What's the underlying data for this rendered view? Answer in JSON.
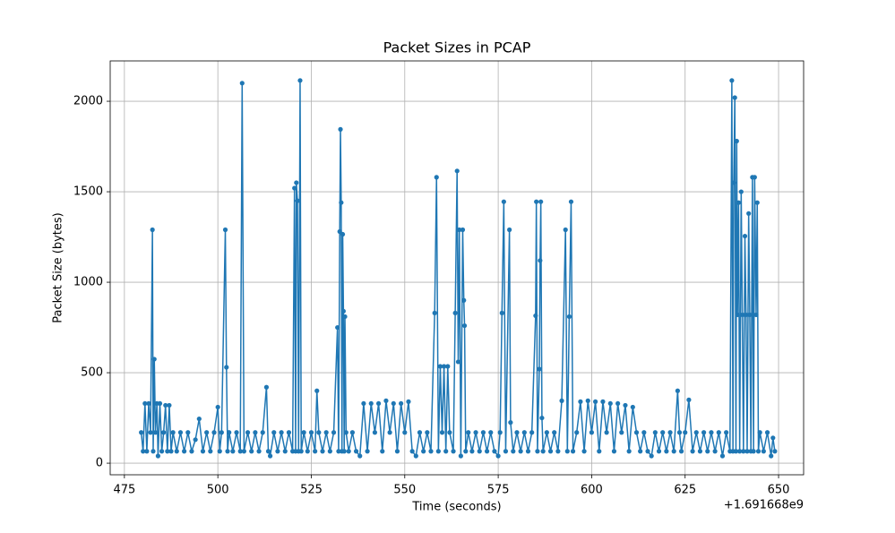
{
  "chart_data": {
    "type": "line",
    "title": "Packet Sizes in PCAP",
    "x_label": "Time (seconds)",
    "y_label": "Packet Size (bytes)",
    "x_offset_label": "+1.691668e9",
    "color": "#1f77b4",
    "grid": true,
    "marker": true,
    "xlim": [
      471.2,
      656.7
    ],
    "xticks": [
      475,
      500,
      525,
      550,
      575,
      600,
      625,
      650
    ],
    "ylim": [
      -64,
      2223
    ],
    "yticks": [
      0,
      500,
      1000,
      1500,
      2000
    ],
    "x": [
      479.5,
      480,
      480.5,
      481,
      481.5,
      482,
      482.5,
      482.7,
      483,
      483.3,
      483.7,
      484,
      484.5,
      485,
      485.5,
      486,
      486.5,
      487,
      487.5,
      488,
      489,
      490,
      491,
      492,
      493,
      494,
      495,
      496,
      497,
      498,
      499,
      500,
      500.5,
      501,
      502,
      502.3,
      502.6,
      503,
      504,
      505,
      506,
      506.5,
      507,
      508,
      509,
      510,
      511,
      512,
      513,
      513.5,
      514,
      515,
      516,
      517,
      518,
      519,
      520,
      520.5,
      520.8,
      521,
      521.3,
      521.6,
      522,
      522.3,
      523,
      524,
      525,
      526,
      526.5,
      527,
      528,
      529,
      530,
      531,
      532,
      532.3,
      532.6,
      532.8,
      533,
      533.2,
      533.4,
      533.6,
      533.8,
      534,
      534.3,
      535,
      536,
      537,
      538,
      539,
      540,
      541,
      542,
      543,
      544,
      545,
      546,
      547,
      548,
      549,
      550,
      551,
      552,
      553,
      554,
      555,
      556,
      557,
      558,
      558.5,
      559,
      559.5,
      560,
      560.5,
      561,
      561.5,
      562,
      563,
      563.5,
      564,
      564.3,
      564.6,
      565,
      565.5,
      565.8,
      566,
      566.3,
      567,
      568,
      569,
      570,
      571,
      572,
      573,
      574,
      575,
      575.5,
      576,
      576.5,
      577,
      578,
      578.3,
      579,
      580,
      581,
      582,
      583,
      584,
      585,
      585.2,
      585.5,
      586,
      586.2,
      586.4,
      586.7,
      587,
      588,
      589,
      590,
      591,
      592,
      593,
      593.5,
      594,
      594.5,
      595,
      596,
      597,
      598,
      599,
      600,
      601,
      602,
      603,
      604,
      605,
      606,
      607,
      608,
      609,
      610,
      611,
      612,
      613,
      614,
      615,
      616,
      617,
      618,
      619,
      620,
      621,
      622,
      623,
      623.5,
      624,
      625,
      626,
      627,
      628,
      629,
      630,
      631,
      632,
      633,
      634,
      635,
      636,
      637,
      637.5,
      637.8,
      638,
      638.3,
      638.6,
      638.8,
      639,
      639.3,
      639.6,
      640,
      640.3,
      640.6,
      641,
      641.3,
      641.6,
      642,
      642.3,
      642.6,
      643,
      643.3,
      643.6,
      644,
      644.3,
      644.6,
      645,
      646,
      647,
      648,
      648.5,
      649
    ],
    "values": [
      170,
      66,
      330,
      66,
      330,
      170,
      1290,
      66,
      575,
      170,
      330,
      40,
      330,
      66,
      170,
      320,
      66,
      320,
      66,
      170,
      66,
      170,
      66,
      170,
      66,
      130,
      245,
      66,
      170,
      66,
      170,
      310,
      66,
      170,
      1290,
      530,
      66,
      170,
      66,
      170,
      66,
      2100,
      66,
      170,
      66,
      170,
      66,
      170,
      420,
      66,
      40,
      170,
      66,
      170,
      66,
      170,
      66,
      1520,
      66,
      1550,
      1450,
      66,
      2115,
      66,
      170,
      66,
      170,
      66,
      400,
      170,
      66,
      170,
      66,
      170,
      750,
      66,
      1280,
      1845,
      1440,
      66,
      1265,
      840,
      66,
      810,
      170,
      66,
      170,
      66,
      40,
      330,
      66,
      330,
      170,
      330,
      66,
      345,
      170,
      330,
      66,
      330,
      170,
      340,
      66,
      40,
      170,
      66,
      170,
      66,
      830,
      1580,
      66,
      535,
      170,
      535,
      66,
      535,
      170,
      66,
      830,
      1615,
      560,
      1290,
      40,
      1290,
      900,
      760,
      66,
      170,
      66,
      170,
      66,
      170,
      66,
      170,
      66,
      40,
      170,
      830,
      1445,
      66,
      1290,
      225,
      66,
      170,
      66,
      170,
      66,
      170,
      815,
      1445,
      66,
      520,
      1120,
      1445,
      250,
      66,
      170,
      66,
      170,
      66,
      345,
      1290,
      66,
      810,
      1445,
      66,
      170,
      340,
      66,
      345,
      170,
      340,
      66,
      340,
      170,
      330,
      66,
      330,
      170,
      320,
      66,
      310,
      170,
      66,
      170,
      66,
      40,
      170,
      66,
      170,
      66,
      170,
      66,
      400,
      170,
      66,
      170,
      350,
      66,
      170,
      66,
      170,
      66,
      170,
      66,
      170,
      40,
      170,
      66,
      2115,
      66,
      1550,
      2020,
      66,
      1780,
      820,
      1440,
      66,
      1500,
      820,
      66,
      1255,
      820,
      66,
      1380,
      820,
      66,
      1580,
      66,
      1580,
      820,
      1440,
      66,
      170,
      66,
      170,
      40,
      140,
      66
    ]
  }
}
